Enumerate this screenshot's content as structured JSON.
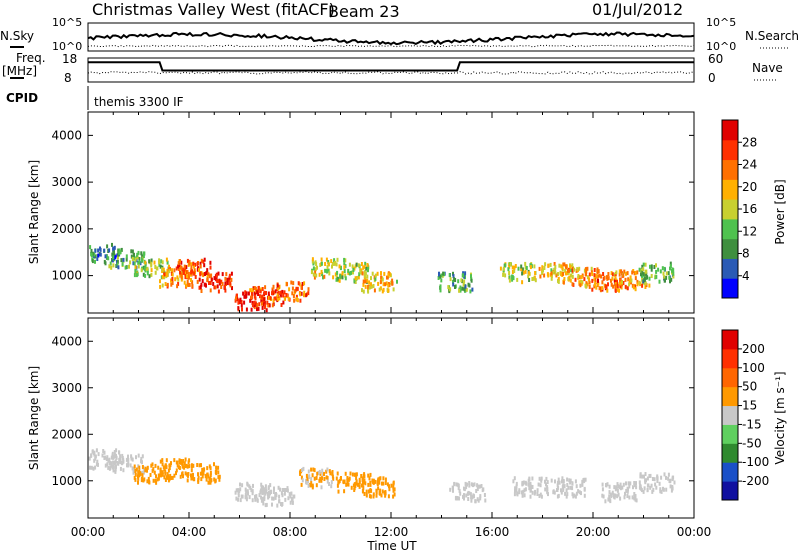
{
  "header": {
    "station": "Christmas Valley West (fitACF)",
    "beam": "Beam 23",
    "date": "01/Jul/2012"
  },
  "sky_panel": {
    "left_label": "N.Sky",
    "left_ticks": [
      "10^5",
      "10^0"
    ],
    "right_ticks": [
      "10^5",
      "10^0"
    ],
    "right_label": "N.Search"
  },
  "freq_panel": {
    "left_label_1": "Freq.",
    "left_label_2": "[MHz]",
    "left_ticks": [
      "18",
      "8"
    ],
    "right_ticks": [
      "60",
      "0"
    ],
    "right_label": "Nave"
  },
  "cpid": {
    "label": "CPID",
    "value": "themis 3300 IF"
  },
  "colors": {
    "power_scale": [
      "#0000ff",
      "#2a5ab5",
      "#3f8f3f",
      "#4fc24f",
      "#c8d030",
      "#ffb000",
      "#ff7000",
      "#ff3000",
      "#e00000"
    ],
    "velocity_scale": [
      "#1010a0",
      "#1a50c8",
      "#2f8a2f",
      "#5fd05f",
      "#c8c8c8",
      "#ff9900",
      "#ff6600",
      "#ff3000",
      "#e00000"
    ],
    "grid": "#000000",
    "background": "#ffffff"
  },
  "chart_data": [
    {
      "type": "heatmap",
      "panel": "power",
      "ylabel": "Slant Range [km]",
      "yticks": [
        "1000",
        "2000",
        "3000",
        "4000"
      ],
      "ylim": [
        200,
        4500
      ],
      "xlim": [
        0,
        24
      ],
      "colorbar_label": "Power [dB]",
      "colorbar_ticks": [
        "28",
        "24",
        "20",
        "16",
        "12",
        "8",
        "4"
      ],
      "colorbar_range": [
        0,
        30
      ],
      "series": [
        {
          "x": [
            0.5,
            1.5,
            2.5,
            3.5,
            4.2,
            5.0,
            6.5,
            7.0,
            8.0,
            9.5,
            10.5,
            11.5,
            14.5,
            17.0,
            18.5,
            19.5,
            20.5,
            21.5,
            22.5
          ],
          "range_km": [
            1500,
            1400,
            1200,
            1000,
            1200,
            900,
            500,
            600,
            700,
            1200,
            1100,
            900,
            900,
            1100,
            1100,
            1000,
            900,
            950,
            1100
          ],
          "value": [
            8,
            10,
            14,
            20,
            24,
            26,
            28,
            24,
            22,
            16,
            14,
            18,
            10,
            14,
            18,
            20,
            22,
            20,
            10
          ]
        }
      ]
    },
    {
      "type": "heatmap",
      "panel": "velocity",
      "ylabel": "Slant Range [km]",
      "yticks": [
        "1000",
        "2000",
        "3000",
        "4000"
      ],
      "ylim": [
        200,
        4500
      ],
      "xlim": [
        0,
        24
      ],
      "xlabel": "Time UT",
      "xticks": [
        "00:00",
        "04:00",
        "08:00",
        "12:00",
        "16:00",
        "20:00",
        "00:00"
      ],
      "colorbar_label": "Velocity [m s⁻¹]",
      "colorbar_ticks": [
        "200",
        "100",
        "50",
        "15",
        "-15",
        "-50",
        "-100",
        "-200"
      ],
      "colorbar_range": [
        -250,
        250
      ],
      "series": [
        {
          "x": [
            0.5,
            1.5,
            2.5,
            3.5,
            4.5,
            6.5,
            7.5,
            9.0,
            10.5,
            11.5,
            15.0,
            17.5,
            19.0,
            21.0,
            22.5
          ],
          "range_km": [
            1500,
            1400,
            1200,
            1300,
            1200,
            800,
            700,
            1100,
            1000,
            900,
            800,
            900,
            900,
            800,
            1000
          ],
          "value": [
            0,
            10,
            40,
            60,
            50,
            0,
            0,
            30,
            40,
            60,
            0,
            0,
            0,
            0,
            0
          ]
        }
      ]
    }
  ]
}
